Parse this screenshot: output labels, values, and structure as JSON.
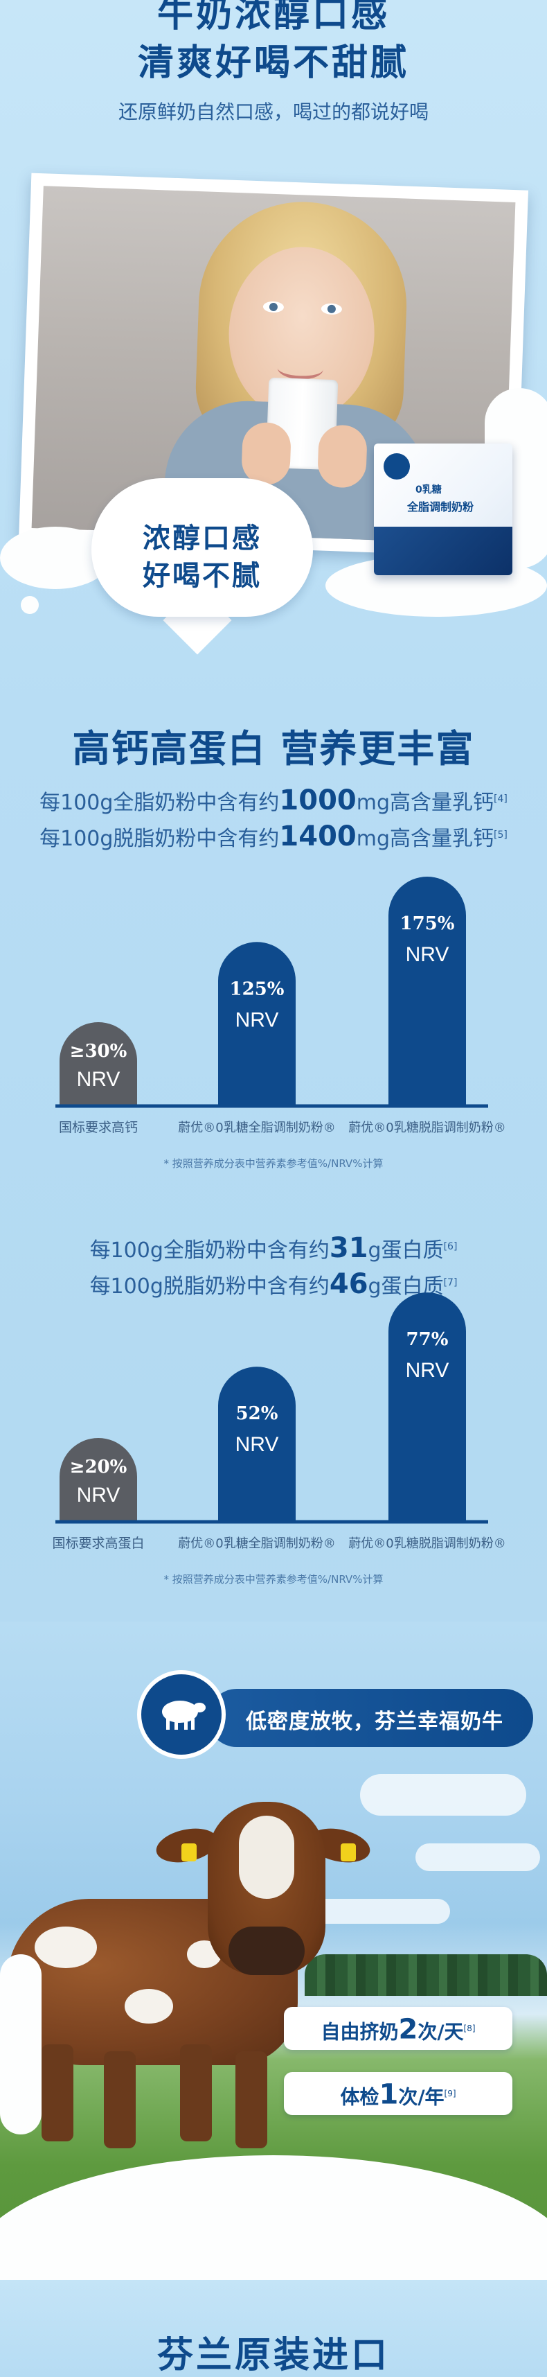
{
  "hero": {
    "title_line1": "牛奶浓醇口感",
    "title_line2": "清爽好喝不甜腻",
    "subtitle": "还原鲜奶自然口感，喝过的都说好喝",
    "badge_line1": "浓醇口感",
    "badge_line2": "好喝不腻",
    "product_line1": "0乳糖",
    "product_line2": "全脂调制奶粉"
  },
  "section": {
    "title": "高钙高蛋白 营养更丰富"
  },
  "calcium": {
    "line1": {
      "prefix": "每100g全脂奶粉中含有约",
      "value": "1000",
      "suffix": "mg高含量乳钙",
      "ref": "[4]"
    },
    "line2": {
      "prefix": "每100g脱脂奶粉中含有约",
      "value": "1400",
      "suffix": "mg高含量乳钙",
      "ref": "[5]"
    },
    "footnote": "* 按照营养成分表中营养素参考值%/NRV%计算"
  },
  "protein": {
    "line1": {
      "prefix": "每100g全脂奶粉中含有约",
      "value": "31",
      "suffix": "g蛋白质",
      "ref": "[6]"
    },
    "line2": {
      "prefix": "每100g脱脂奶粉中含有约",
      "value": "46",
      "suffix": "g蛋白质",
      "ref": "[7]"
    },
    "footnote": "* 按照营养成分表中营养素参考值%/NRV%计算"
  },
  "chart_data": [
    {
      "type": "bar",
      "categories": [
        "国标要求高钙",
        "蔚优®0乳糖全脂调制奶粉®",
        "蔚优®0乳糖脱脂调制奶粉®"
      ],
      "values": [
        30,
        125,
        175
      ],
      "value_labels": [
        "≥30%",
        "125%",
        "175%"
      ],
      "unit_label": "NRV",
      "colors": [
        "#5a5d63",
        "#0e4a8c",
        "#0e4a8c"
      ],
      "ylim": [
        0,
        175
      ]
    },
    {
      "type": "bar",
      "categories": [
        "国标要求高蛋白",
        "蔚优®0乳糖全脂调制奶粉®",
        "蔚优®0乳糖脱脂调制奶粉®"
      ],
      "values": [
        20,
        52,
        77
      ],
      "value_labels": [
        "≥20%",
        "52%",
        "77%"
      ],
      "unit_label": "NRV",
      "colors": [
        "#5a5d63",
        "#0e4a8c",
        "#0e4a8c"
      ],
      "ylim": [
        0,
        77
      ]
    }
  ],
  "pasture": {
    "banner": "低密度放牧，芬兰幸福奶牛",
    "milking": {
      "prefix": "自由挤奶",
      "value": "2",
      "suffix": "次/天",
      "ref": "[8]"
    },
    "checkup": {
      "prefix": "体检",
      "value": "1",
      "suffix": "次/年",
      "ref": "[9]"
    },
    "icon": "sheep-icon"
  },
  "bottom": {
    "title": "芬兰原装进口"
  }
}
